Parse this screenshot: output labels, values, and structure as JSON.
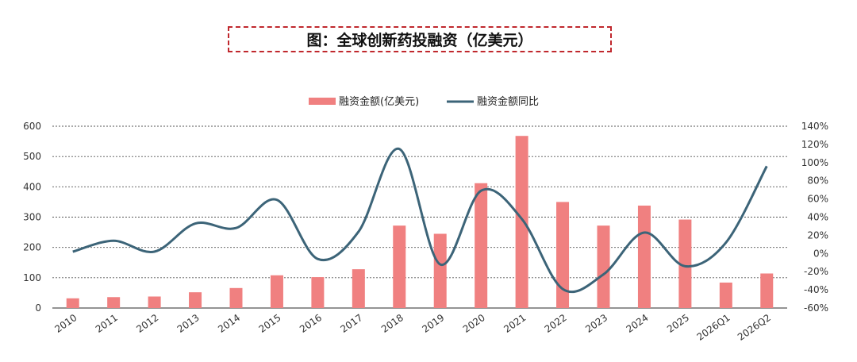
{
  "title": "图：全球创新药投融资（亿美元）",
  "colors": {
    "bar": "#f08080",
    "line": "#3c6478",
    "grid": "#555555",
    "title_border": "#c0282d"
  },
  "chart_data": {
    "type": "bar+line",
    "categories": [
      "2010",
      "2011",
      "2012",
      "2013",
      "2014",
      "2015",
      "2016",
      "2017",
      "2018",
      "2019",
      "2020",
      "2021",
      "2022",
      "2023",
      "2024",
      "2025",
      "2026Q1",
      "2026Q2"
    ],
    "series": [
      {
        "name": "融资金额(亿美元)",
        "type": "bar",
        "axis": "left",
        "values": [
          32,
          36,
          38,
          52,
          66,
          108,
          102,
          128,
          272,
          245,
          412,
          568,
          350,
          272,
          338,
          292,
          84,
          114
        ]
      },
      {
        "name": "融资金额同比",
        "type": "line",
        "axis": "right",
        "values": [
          2,
          14,
          2,
          33,
          28,
          59,
          -6,
          24,
          115,
          -12,
          69,
          38,
          -39,
          -23,
          23,
          -14,
          12,
          96
        ]
      }
    ],
    "y_left": {
      "min": 0,
      "max": 600,
      "ticks": [
        "0",
        "100",
        "200",
        "300",
        "400",
        "500",
        "600"
      ]
    },
    "y_right": {
      "min": -60,
      "max": 140,
      "ticks": [
        "-60%",
        "-40%",
        "-20%",
        "0%",
        "20%",
        "40%",
        "60%",
        "80%",
        "100%",
        "120%",
        "140%"
      ]
    },
    "grid": true,
    "legend_position": "top"
  }
}
